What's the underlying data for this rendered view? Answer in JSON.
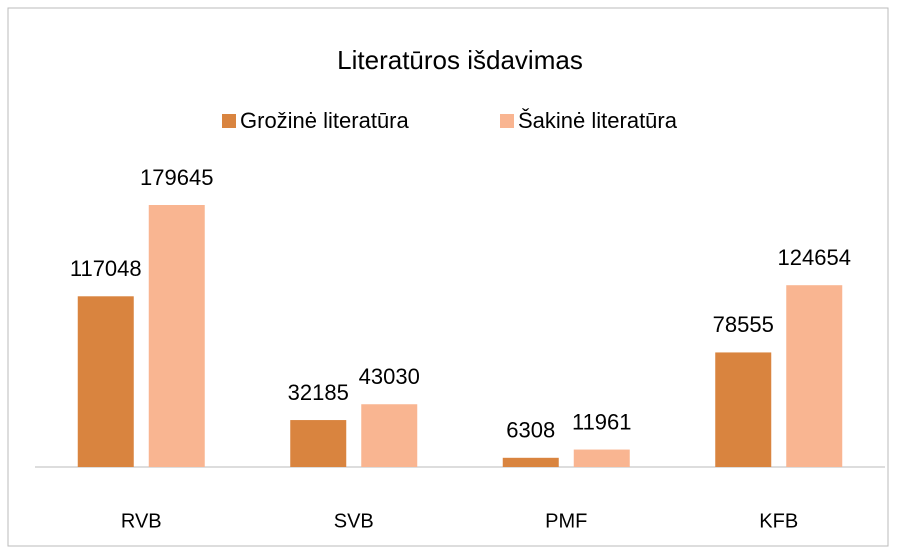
{
  "chart_data": {
    "type": "bar",
    "title": "Literatūros išdavimas",
    "categories": [
      "RVB",
      "SVB",
      "PMF",
      "KFB"
    ],
    "series": [
      {
        "name": "Grožinė literatūra",
        "color": "#d9843f",
        "values": [
          117048,
          32185,
          6308,
          78555
        ]
      },
      {
        "name": "Šakinė literatūra",
        "color": "#f9b591",
        "values": [
          179645,
          43030,
          11961,
          124654
        ]
      }
    ]
  }
}
